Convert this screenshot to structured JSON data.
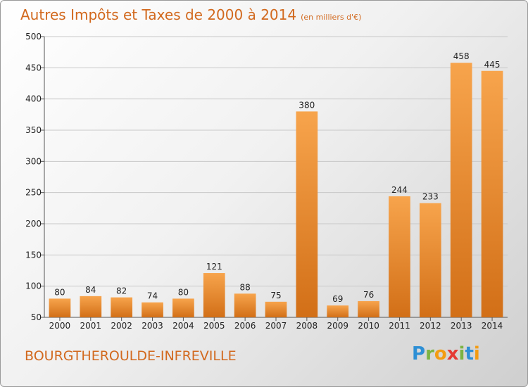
{
  "title": "Autres Impôts et Taxes de 2000 à 2014",
  "subtitle": "(en milliers d'€)",
  "place_name": "BOURGTHEROULDE-INFREVILLE",
  "logo": {
    "letters": [
      "P",
      "r",
      "o",
      "x",
      "i",
      "t",
      "i"
    ]
  },
  "colors": {
    "bar_top": "#f7a44c",
    "bar_bottom": "#d26f17",
    "text_accent": "#d2691e"
  },
  "chart_data": {
    "type": "bar",
    "title": "Autres Impôts et Taxes de 2000 à 2014",
    "subtitle": "(en milliers d'€)",
    "xlabel": "",
    "ylabel": "",
    "categories": [
      "2000",
      "2001",
      "2002",
      "2003",
      "2004",
      "2005",
      "2006",
      "2007",
      "2008",
      "2009",
      "2010",
      "2011",
      "2012",
      "2013",
      "2014"
    ],
    "values": [
      80,
      84,
      82,
      74,
      80,
      121,
      88,
      75,
      380,
      69,
      76,
      244,
      233,
      458,
      445
    ],
    "ylim": [
      50,
      500
    ],
    "yticks": [
      50,
      100,
      150,
      200,
      250,
      300,
      350,
      400,
      450,
      500
    ],
    "grid": true,
    "legend": "none"
  }
}
